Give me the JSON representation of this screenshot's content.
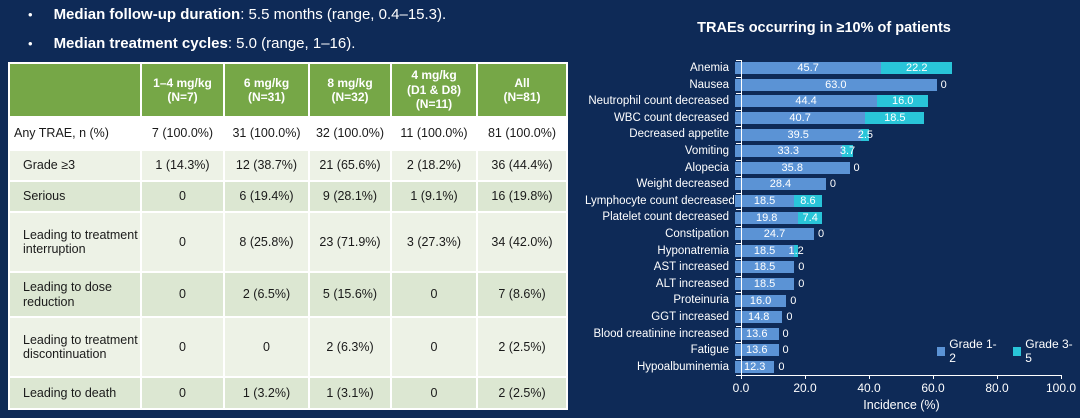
{
  "bullets": [
    {
      "bold": "Median follow-up duration",
      "rest": ": 5.5 months (range, 0.4–15.3)."
    },
    {
      "bold": "Median treatment cycles",
      "rest": ": 5.0 (range, 1–16)."
    }
  ],
  "table": {
    "col_headers": [
      "",
      "1–4 mg/kg\n(N=7)",
      "6 mg/kg\n(N=31)",
      "8 mg/kg\n(N=32)",
      "4 mg/kg\n(D1 & D8)\n(N=11)",
      "All\n(N=81)"
    ],
    "rows": [
      {
        "label": "Any TRAE, n (%)",
        "indent": false,
        "values": [
          "7 (100.0%)",
          "31 (100.0%)",
          "32 (100.0%)",
          "11 (100.0%)",
          "81 (100.0%)"
        ]
      },
      {
        "label": "Grade ≥3",
        "indent": true,
        "values": [
          "1 (14.3%)",
          "12 (38.7%)",
          "21 (65.6%)",
          "2 (18.2%)",
          "36 (44.4%)"
        ]
      },
      {
        "label": "Serious",
        "indent": true,
        "values": [
          "0",
          "6 (19.4%)",
          "9 (28.1%)",
          "1 (9.1%)",
          "16 (19.8%)"
        ]
      },
      {
        "label": "Leading to treatment interruption",
        "indent": true,
        "values": [
          "0",
          "8 (25.8%)",
          "23 (71.9%)",
          "3 (27.3%)",
          "34 (42.0%)"
        ]
      },
      {
        "label": "Leading to dose reduction",
        "indent": true,
        "values": [
          "0",
          "2 (6.5%)",
          "5 (15.6%)",
          "0",
          "7 (8.6%)"
        ]
      },
      {
        "label": "Leading to treatment discontinuation",
        "indent": true,
        "values": [
          "0",
          "0",
          "2 (6.3%)",
          "0",
          "2 (2.5%)"
        ]
      },
      {
        "label": "Leading to death",
        "indent": true,
        "values": [
          "0",
          "1 (3.2%)",
          "1 (3.1%)",
          "0",
          "2 (2.5%)"
        ]
      }
    ]
  },
  "chart_data": {
    "type": "bar",
    "orientation": "horizontal",
    "stacked": true,
    "title": "TRAEs occurring in ≥10% of patients",
    "xlabel": "Incidence  (%)",
    "xlim": [
      0,
      100
    ],
    "xticks": [
      "0.0",
      "20.0",
      "40.0",
      "60.0",
      "80.0",
      "100.0"
    ],
    "legend_position": "inside-right-bottom",
    "grid": false,
    "categories": [
      "Anemia",
      "Nausea",
      "Neutrophil count decreased",
      "WBC count decreased",
      "Decreased appetite",
      "Vomiting",
      "Alopecia",
      "Weight decreased",
      "Lymphocyte count decreased",
      "Platelet count decreased",
      "Constipation",
      "Hyponatremia",
      "AST increased",
      "ALT increased",
      "Proteinuria",
      "GGT increased",
      "Blood creatinine increased",
      "Fatigue",
      "Hypoalbuminemia"
    ],
    "series": [
      {
        "name": "Grade 1-2",
        "color": "#5B93D5",
        "values": [
          45.7,
          63.0,
          44.4,
          40.7,
          39.5,
          33.3,
          35.8,
          28.4,
          18.5,
          19.8,
          24.7,
          18.5,
          18.5,
          18.5,
          16.0,
          14.8,
          13.6,
          13.6,
          12.3
        ]
      },
      {
        "name": "Grade 3-5",
        "color": "#29C5D9",
        "values": [
          22.2,
          0,
          16.0,
          18.5,
          2.5,
          3.7,
          0,
          0,
          8.6,
          7.4,
          0,
          1.2,
          0,
          0,
          0,
          0,
          0,
          0,
          0
        ]
      }
    ]
  },
  "colors": {
    "background": "#0E2A57",
    "table_header_green": "#76A747",
    "row_pale": "#EDF2E6",
    "row_green": "#DCE7D2",
    "bar_grade12_blue": "#5B93D5",
    "bar_grade35_cyan": "#29C5D9",
    "text_white": "#FFFFFF"
  }
}
